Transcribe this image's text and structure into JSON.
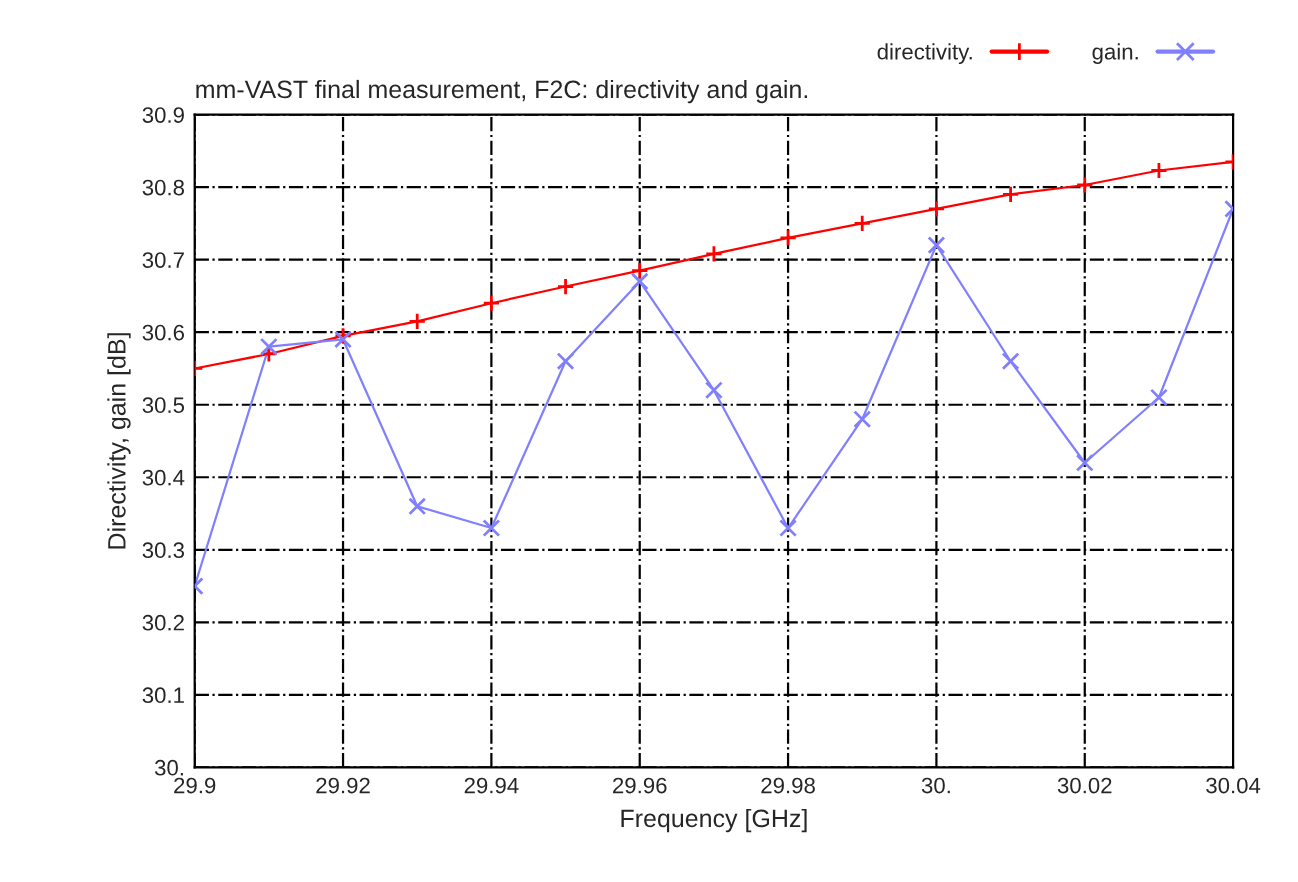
{
  "chart_data": {
    "type": "line",
    "title": "mm-VAST final measurement, F2C: directivity and gain.",
    "xlabel": "Frequency [GHz]",
    "ylabel": "Directivity, gain [dB]",
    "x": [
      29.9,
      29.91,
      29.92,
      29.93,
      29.94,
      29.95,
      29.96,
      29.97,
      29.98,
      29.99,
      30.0,
      30.01,
      30.02,
      30.03,
      30.04
    ],
    "series": [
      {
        "name": "directivity.",
        "color": "#ff0000",
        "marker": "plus",
        "values": [
          30.55,
          30.57,
          30.595,
          30.615,
          30.64,
          30.663,
          30.685,
          30.708,
          30.73,
          30.75,
          30.77,
          30.79,
          30.803,
          30.823,
          30.835
        ]
      },
      {
        "name": "gain.",
        "color": "#8080ff",
        "marker": "cross",
        "values": [
          30.25,
          30.58,
          30.59,
          30.36,
          30.33,
          30.56,
          30.67,
          30.52,
          30.33,
          30.48,
          30.72,
          30.56,
          30.42,
          30.51,
          30.77
        ]
      }
    ],
    "xlim": [
      29.9,
      30.04
    ],
    "ylim": [
      30.0,
      30.9
    ],
    "xticks": [
      29.9,
      29.92,
      29.94,
      29.96,
      29.98,
      {
        "value": 30.0,
        "label": "30."
      },
      30.02,
      30.04
    ],
    "yticks": [
      {
        "value": 30.0,
        "label": "30."
      },
      30.1,
      30.2,
      30.3,
      30.4,
      30.5,
      30.6,
      30.7,
      30.8,
      30.9
    ],
    "grid": true,
    "legend": "top right",
    "line_style": "solid"
  }
}
